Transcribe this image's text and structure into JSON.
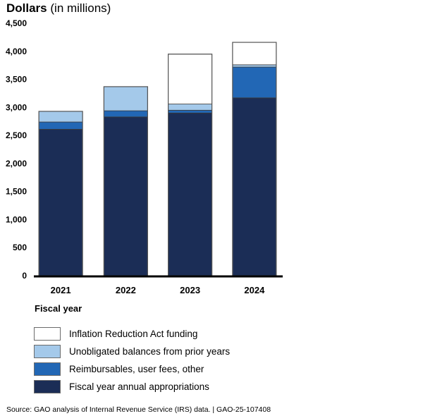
{
  "chart_data": {
    "type": "bar",
    "stacked": true,
    "title": "Dollars",
    "title_suffix": "(in millions)",
    "xlabel": "Fiscal year",
    "ylabel": "Dollars (in millions)",
    "ylim": [
      0,
      4500
    ],
    "yticks": [
      0,
      500,
      1000,
      1500,
      2000,
      2500,
      3000,
      3500,
      4000,
      4500
    ],
    "ytick_labels": [
      "0",
      "500",
      "1,000",
      "1,500",
      "2,000",
      "2,500",
      "3,000",
      "3,500",
      "4,000",
      "4,500"
    ],
    "grid": false,
    "categories": [
      "2021",
      "2022",
      "2023",
      "2024"
    ],
    "series": [
      {
        "name": "Fiscal year annual appropriations",
        "color": "#1b2d56",
        "values": [
          2610,
          2830,
          2900,
          3170
        ]
      },
      {
        "name": "Reimbursables, user fees, other",
        "color": "#2267b5",
        "values": [
          130,
          110,
          50,
          550
        ]
      },
      {
        "name": "Unobligated balances from prior years",
        "color": "#a4c9ea",
        "values": [
          190,
          430,
          110,
          40
        ]
      },
      {
        "name": "Inflation Reduction Act funding",
        "color": "#ffffff",
        "values": [
          0,
          0,
          890,
          400
        ]
      }
    ],
    "legend_placement": "bottom-left",
    "legend_order": [
      "Inflation Reduction Act funding",
      "Unobligated balances from prior years",
      "Reimbursables, user fees, other",
      "Fiscal year annual appropriations"
    ]
  },
  "legend": [
    {
      "label": "Inflation Reduction Act funding",
      "color": "#ffffff"
    },
    {
      "label": "Unobligated balances from prior years",
      "color": "#a4c9ea"
    },
    {
      "label": "Reimbursables, user fees, other",
      "color": "#2267b5"
    },
    {
      "label": "Fiscal year annual appropriations",
      "color": "#1b2d56"
    }
  ],
  "source": "Source: GAO analysis of Internal Revenue Service (IRS) data.  |  GAO-25-107408"
}
